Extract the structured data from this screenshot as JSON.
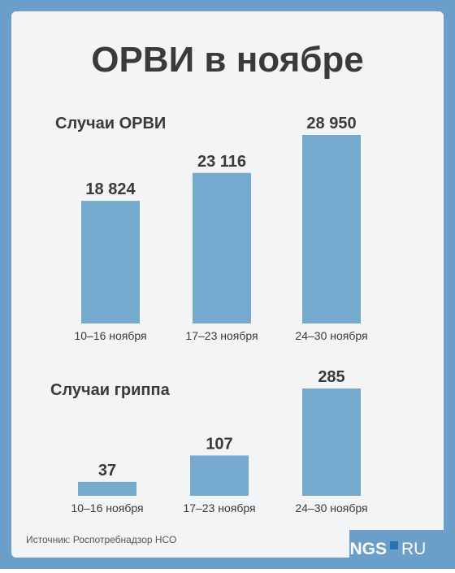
{
  "title": "ОРВИ в ноябре",
  "chart_data": [
    {
      "type": "bar",
      "title": "Случаи ОРВИ",
      "categories": [
        "10–16 ноября",
        "17–23 ноября",
        "24–30 ноября"
      ],
      "values": [
        18824,
        23116,
        28950
      ],
      "value_labels": [
        "18 824",
        "23 116",
        "28 950"
      ],
      "color": "#75a9cd"
    },
    {
      "type": "bar",
      "title": "Случаи гриппа",
      "categories": [
        "10–16 ноября",
        "17–23 ноября",
        "24–30 ноября"
      ],
      "values": [
        37,
        107,
        285
      ],
      "value_labels": [
        "37",
        "107",
        "285"
      ],
      "color": "#75a9cd"
    }
  ],
  "source": "Источник: Роспотребнадзор НСО",
  "logo": {
    "left": "NGS",
    "right": "RU"
  }
}
